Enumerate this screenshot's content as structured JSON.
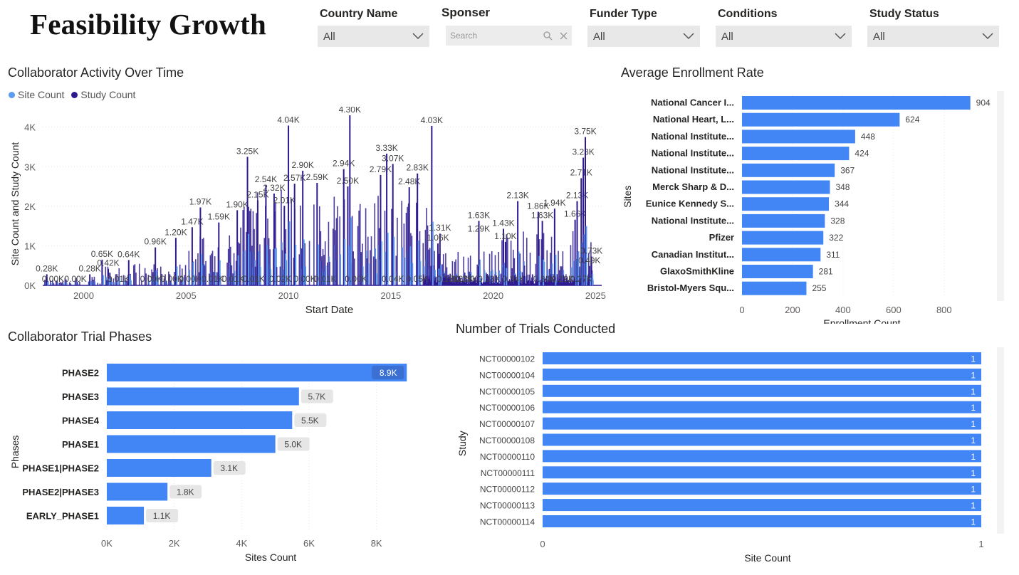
{
  "page": {
    "title": "Feasibility Growth"
  },
  "filters": {
    "country": {
      "label": "Country Name",
      "value": "All"
    },
    "sponsor": {
      "label": "Sponser",
      "placeholder": "Search"
    },
    "funder": {
      "label": "Funder Type",
      "value": "All"
    },
    "conditions": {
      "label": "Conditions",
      "value": "All"
    },
    "status": {
      "label": "Study Status",
      "value": "All"
    }
  },
  "colors": {
    "site": "#5b9bf0",
    "study": "#2e1a8f",
    "bar": "#4285f4",
    "label_bg": "#e6e6e6"
  },
  "activity": {
    "title": "Collaborator Activity Over Time",
    "legend": [
      "Site Count",
      "Study Count"
    ],
    "chart_data": {
      "type": "line",
      "title": "Collaborator Activity Over Time",
      "xlabel": "Start Date",
      "ylabel": "Site Count and Study Count",
      "xlim": [
        1998,
        2025.3
      ],
      "ylim": [
        0,
        4300
      ],
      "x_ticks": [
        "2000",
        "2005",
        "2010",
        "2015",
        "2020",
        "2025"
      ],
      "y_ticks": [
        "0K",
        "1K",
        "2K",
        "3K",
        "4K"
      ],
      "peaks": [
        {
          "x": 1998.2,
          "v": 280,
          "label": "0.28K"
        },
        {
          "x": 2000.3,
          "v": 280,
          "label": "0.28K"
        },
        {
          "x": 2000.9,
          "v": 650,
          "label": "0.65K"
        },
        {
          "x": 2001.2,
          "v": 420,
          "label": "0.42K"
        },
        {
          "x": 2002.2,
          "v": 640,
          "label": "0.64K"
        },
        {
          "x": 2003.5,
          "v": 960,
          "label": "0.96K"
        },
        {
          "x": 2004.5,
          "v": 1200,
          "label": "1.20K"
        },
        {
          "x": 2005.3,
          "v": 1470,
          "label": "1.47K"
        },
        {
          "x": 2005.7,
          "v": 1970,
          "label": "1.97K"
        },
        {
          "x": 2006.6,
          "v": 1590,
          "label": "1.59K"
        },
        {
          "x": 2007.5,
          "v": 1900,
          "label": "1.90K"
        },
        {
          "x": 2008,
          "v": 3250,
          "label": "3.25K"
        },
        {
          "x": 2008.5,
          "v": 2150,
          "label": "2.15K"
        },
        {
          "x": 2008.9,
          "v": 2540,
          "label": "2.54K"
        },
        {
          "x": 2009.3,
          "v": 2320,
          "label": "2.32K"
        },
        {
          "x": 2009.8,
          "v": 2010,
          "label": "2.01K"
        },
        {
          "x": 2010,
          "v": 4040,
          "label": "4.04K"
        },
        {
          "x": 2010.3,
          "v": 2570,
          "label": "2.57K"
        },
        {
          "x": 2010.7,
          "v": 2900,
          "label": "2.90K"
        },
        {
          "x": 2011.4,
          "v": 2590,
          "label": "2.59K"
        },
        {
          "x": 2012.7,
          "v": 2940,
          "label": "2.94K"
        },
        {
          "x": 2013,
          "v": 4300,
          "label": "4.30K"
        },
        {
          "x": 2012.9,
          "v": 2500,
          "label": "2.50K"
        },
        {
          "x": 2014.5,
          "v": 2790,
          "label": "2.79K"
        },
        {
          "x": 2014.8,
          "v": 3330,
          "label": "3.33K"
        },
        {
          "x": 2015.1,
          "v": 3070,
          "label": "3.07K"
        },
        {
          "x": 2015.9,
          "v": 2480,
          "label": "2.48K"
        },
        {
          "x": 2016.3,
          "v": 2830,
          "label": "2.83K"
        },
        {
          "x": 2017,
          "v": 4030,
          "label": "4.03K"
        },
        {
          "x": 2017.4,
          "v": 1310,
          "label": "1.31K"
        },
        {
          "x": 2017.3,
          "v": 1060,
          "label": "1.06K"
        },
        {
          "x": 2019.3,
          "v": 1630,
          "label": "1.63K"
        },
        {
          "x": 2019.3,
          "v": 1290,
          "label": "1.29K"
        },
        {
          "x": 2020.5,
          "v": 1430,
          "label": "1.43K"
        },
        {
          "x": 2020.6,
          "v": 1100,
          "label": "1.10K"
        },
        {
          "x": 2021.2,
          "v": 2130,
          "label": "2.13K"
        },
        {
          "x": 2022.2,
          "v": 1860,
          "label": "1.86K"
        },
        {
          "x": 2022.4,
          "v": 1630,
          "label": "1.63K"
        },
        {
          "x": 2023,
          "v": 1940,
          "label": "1.94K"
        },
        {
          "x": 2024,
          "v": 1660,
          "label": "1.66K"
        },
        {
          "x": 2024.1,
          "v": 2130,
          "label": "2.13K"
        },
        {
          "x": 2024.3,
          "v": 2710,
          "label": "2.71K"
        },
        {
          "x": 2024.4,
          "v": 3230,
          "label": "3.23K"
        },
        {
          "x": 2024.5,
          "v": 3750,
          "label": "3.75K"
        },
        {
          "x": 2024.8,
          "v": 730,
          "label": "0.73K"
        },
        {
          "x": 2024.7,
          "v": 490,
          "label": "0.49K"
        }
      ],
      "low_labels": [
        {
          "x": 1998.5,
          "v": 0,
          "label": "0.00K"
        },
        {
          "x": 1999.6,
          "v": 0,
          "label": "0.00K"
        },
        {
          "x": 2001.7,
          "v": 10,
          "label": "0.01K"
        },
        {
          "x": 2003.3,
          "v": 0,
          "label": "0.00K"
        },
        {
          "x": 2004.3,
          "v": 0,
          "label": "0.00K"
        },
        {
          "x": 2005.2,
          "v": 0,
          "label": "0.00K"
        },
        {
          "x": 2006.3,
          "v": 10,
          "label": "0.01K"
        },
        {
          "x": 2007.3,
          "v": 10,
          "label": "0.01K"
        },
        {
          "x": 2008.3,
          "v": 10,
          "label": "0.01K"
        },
        {
          "x": 2009.6,
          "v": 20,
          "label": "0.02K"
        },
        {
          "x": 2010.8,
          "v": 0,
          "label": "0.00K"
        },
        {
          "x": 2011.8,
          "v": 10,
          "label": "0.01K"
        },
        {
          "x": 2013.3,
          "v": 0,
          "label": "0.00K"
        },
        {
          "x": 2015.1,
          "v": 40,
          "label": "0.04K"
        },
        {
          "x": 2016.3,
          "v": 50,
          "label": "0.05K"
        },
        {
          "x": 2017.8,
          "v": 150,
          "label": "0.15K"
        },
        {
          "x": 2018.5,
          "v": 330,
          "label": "0.33K"
        },
        {
          "x": 2018.7,
          "v": 150,
          "label": "0.15K"
        },
        {
          "x": 2019.8,
          "v": 330,
          "label": "0.33K"
        },
        {
          "x": 2021,
          "v": 340,
          "label": "0.34K"
        },
        {
          "x": 2022.5,
          "v": 340,
          "label": "0.34K"
        },
        {
          "x": 2023.4,
          "v": 290,
          "label": "0.29K"
        },
        {
          "x": 2024.3,
          "v": 270,
          "label": "0.27K"
        }
      ]
    }
  },
  "enrollment": {
    "title": "Average Enrollment Rate",
    "chart_data": {
      "type": "bar",
      "orientation": "horizontal",
      "title": "Average Enrollment Rate",
      "ylabel": "Sites",
      "xlabel": "Enrollment Count",
      "xlim": [
        0,
        950
      ],
      "x_ticks": [
        0,
        200,
        400,
        600,
        800
      ],
      "categories": [
        "National Cancer I...",
        "National Heart, L...",
        "National Institute...",
        "National Institute...",
        "National Institute...",
        "Merck Sharp & D...",
        "Eunice Kennedy S...",
        "National Institute...",
        "Pfizer",
        "Canadian Institut...",
        "GlaxoSmithKline",
        "Bristol-Myers Squ..."
      ],
      "values": [
        904,
        624,
        448,
        424,
        367,
        348,
        344,
        328,
        322,
        311,
        281,
        255
      ]
    }
  },
  "phases": {
    "title": "Collaborator Trial Phases",
    "chart_data": {
      "type": "bar",
      "orientation": "horizontal",
      "title": "Collaborator Trial Phases",
      "ylabel": "Phases",
      "xlabel": "Sites Count",
      "xlim": [
        0,
        9000
      ],
      "x_ticks": [
        "0K",
        "2K",
        "4K",
        "6K",
        "8K"
      ],
      "categories": [
        "PHASE2",
        "PHASE3",
        "PHASE4",
        "PHASE1",
        "PHASE1|PHASE2",
        "PHASE2|PHASE3",
        "EARLY_PHASE1"
      ],
      "values": [
        8900,
        5700,
        5500,
        5000,
        3100,
        1800,
        1100
      ],
      "labels": [
        "8.9K",
        "5.7K",
        "5.5K",
        "5.0K",
        "3.1K",
        "1.8K",
        "1.1K"
      ]
    }
  },
  "trials": {
    "title": "Number of Trials Conducted",
    "chart_data": {
      "type": "bar",
      "orientation": "horizontal",
      "title": "Number of Trials Conducted",
      "ylabel": "Study",
      "xlabel": "Site Count",
      "xlim": [
        0,
        1
      ],
      "x_ticks": [
        0,
        1
      ],
      "categories": [
        "NCT00000102",
        "NCT00000104",
        "NCT00000105",
        "NCT00000106",
        "NCT00000107",
        "NCT00000108",
        "NCT00000110",
        "NCT00000111",
        "NCT00000112",
        "NCT00000113",
        "NCT00000114"
      ],
      "values": [
        1,
        1,
        1,
        1,
        1,
        1,
        1,
        1,
        1,
        1,
        1
      ]
    }
  }
}
